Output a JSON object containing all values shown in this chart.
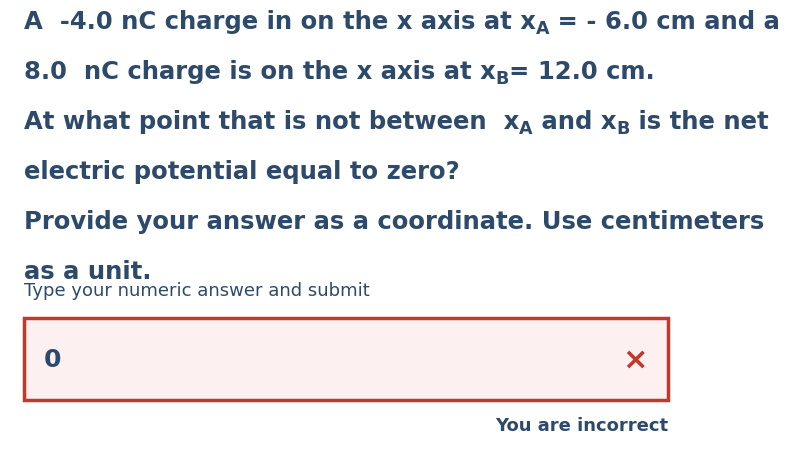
{
  "background_color": "#ffffff",
  "text_color": "#2d4a6b",
  "box_border_color": "#c0392b",
  "box_bg_color": "#fdf0f0",
  "x_cross_color": "#c0392b",
  "main_fontsize": 17.5,
  "prompt_fontsize": 13,
  "answer_fontsize": 18,
  "incorrect_fontsize": 13,
  "answer": "0",
  "prompt": "Type your numeric answer and submit",
  "incorrect_text": "You are incorrect",
  "line1_parts": [
    [
      "A  -4.0 nC charge in on the x axis at x",
      "normal"
    ],
    [
      "A",
      "sub"
    ],
    [
      " = - 6.0 cm and a",
      "normal"
    ]
  ],
  "line2_parts": [
    [
      "8.0  nC charge is on the x axis at x",
      "normal"
    ],
    [
      "B",
      "sub"
    ],
    [
      "= 12.0 cm.",
      "normal"
    ]
  ],
  "line3_parts": [
    [
      "At what point that is not between  x",
      "normal"
    ],
    [
      "A",
      "sub"
    ],
    [
      " and x",
      "normal"
    ],
    [
      "B",
      "sub"
    ],
    [
      " is the net",
      "normal"
    ]
  ],
  "line4_parts": [
    [
      "electric potential equal to zero?",
      "normal"
    ]
  ],
  "line5_parts": [
    [
      "Provide your answer as a coordinate. Use centimeters",
      "normal"
    ]
  ],
  "line6_parts": [
    [
      "as a unit.",
      "normal"
    ]
  ]
}
